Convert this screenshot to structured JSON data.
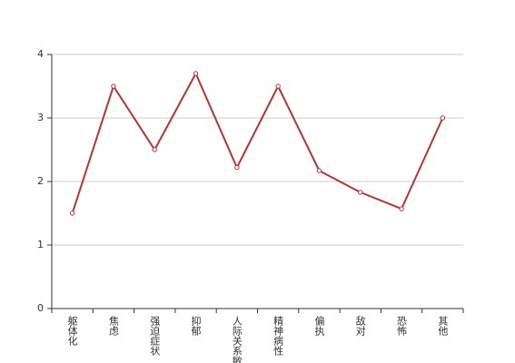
{
  "chart_data": {
    "type": "line",
    "categories": [
      "躯体化",
      "焦虑",
      "强迫症状",
      "抑郁",
      "人际关系敏感",
      "精神病性",
      "偏执",
      "敌对",
      "恐怖",
      "其他"
    ],
    "values": [
      1.5,
      3.5,
      2.5,
      3.7,
      2.22,
      3.5,
      2.17,
      1.83,
      1.57,
      3.0
    ],
    "color": "#b83232",
    "ylim": [
      0,
      4
    ],
    "yticks": [
      0,
      1,
      2,
      3,
      4
    ],
    "grid": true
  }
}
